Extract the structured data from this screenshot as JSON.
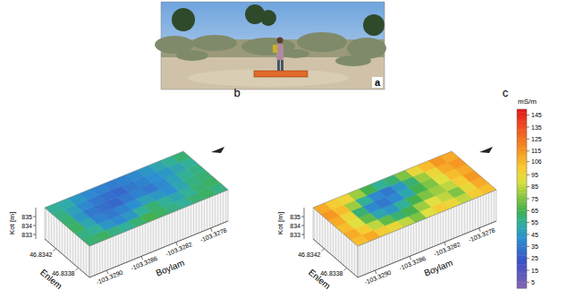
{
  "photo": {
    "label": "a"
  },
  "chart_data": [
    {
      "type": "heatmap",
      "label": "b",
      "x_label": "Boylam",
      "y_label": "Enlem",
      "z_label": "Kot [m]",
      "xlim": [
        -103.3292,
        -103.3276
      ],
      "xticks": [
        {
          "value": -103.329,
          "label": "-103.3290"
        },
        -103.3286,
        -103.3282,
        -103.3278
      ],
      "ylim": [
        46.8336,
        46.8344
      ],
      "yticks": [
        46.8338,
        46.8342
      ],
      "zlim": [
        832.5,
        836
      ],
      "zticks": [
        833,
        834,
        835
      ],
      "cells": [
        [
          60,
          62,
          58,
          55,
          60,
          65,
          62,
          58,
          55,
          60,
          62,
          58
        ],
        [
          58,
          55,
          45,
          40,
          45,
          55,
          60,
          55,
          50,
          55,
          60,
          62
        ],
        [
          62,
          50,
          38,
          35,
          38,
          42,
          48,
          45,
          42,
          50,
          58,
          60
        ],
        [
          60,
          45,
          35,
          32,
          30,
          35,
          38,
          35,
          40,
          48,
          55,
          58
        ],
        [
          58,
          48,
          40,
          35,
          32,
          30,
          35,
          38,
          42,
          45,
          50,
          55
        ],
        [
          55,
          52,
          45,
          40,
          38,
          36,
          38,
          40,
          45,
          50,
          55,
          60
        ]
      ]
    },
    {
      "type": "heatmap",
      "label": "c",
      "x_label": "Boylam",
      "y_label": "Enlem",
      "z_label": "Kot [m]",
      "xlim": [
        -103.3292,
        -103.3276
      ],
      "xticks": [
        {
          "value": -103.329,
          "label": "-103.3290"
        },
        -103.3286,
        -103.3282,
        -103.3278
      ],
      "ylim": [
        46.8336,
        46.8344
      ],
      "yticks": [
        46.8338,
        46.8342
      ],
      "zlim": [
        832.5,
        836
      ],
      "zticks": [
        833,
        834,
        835
      ],
      "cells": [
        [
          105,
          110,
          100,
          95,
          85,
          75,
          90,
          100,
          95,
          85,
          100,
          105
        ],
        [
          110,
          100,
          85,
          70,
          60,
          65,
          80,
          90,
          85,
          75,
          95,
          110
        ],
        [
          105,
          90,
          70,
          50,
          45,
          55,
          65,
          75,
          80,
          85,
          100,
          115
        ],
        [
          110,
          95,
          60,
          40,
          35,
          40,
          50,
          65,
          75,
          90,
          105,
          110
        ],
        [
          115,
          105,
          80,
          55,
          40,
          35,
          45,
          60,
          80,
          95,
          110,
          115
        ],
        [
          110,
          100,
          95,
          80,
          65,
          55,
          60,
          75,
          95,
          105,
          115,
          110
        ]
      ]
    }
  ],
  "color_bar": {
    "label": "mS/m",
    "range": [
      0,
      150
    ],
    "ticks": [
      5,
      15,
      25,
      35,
      45,
      55,
      65,
      75,
      85,
      95,
      106,
      115,
      125,
      135,
      145
    ]
  }
}
